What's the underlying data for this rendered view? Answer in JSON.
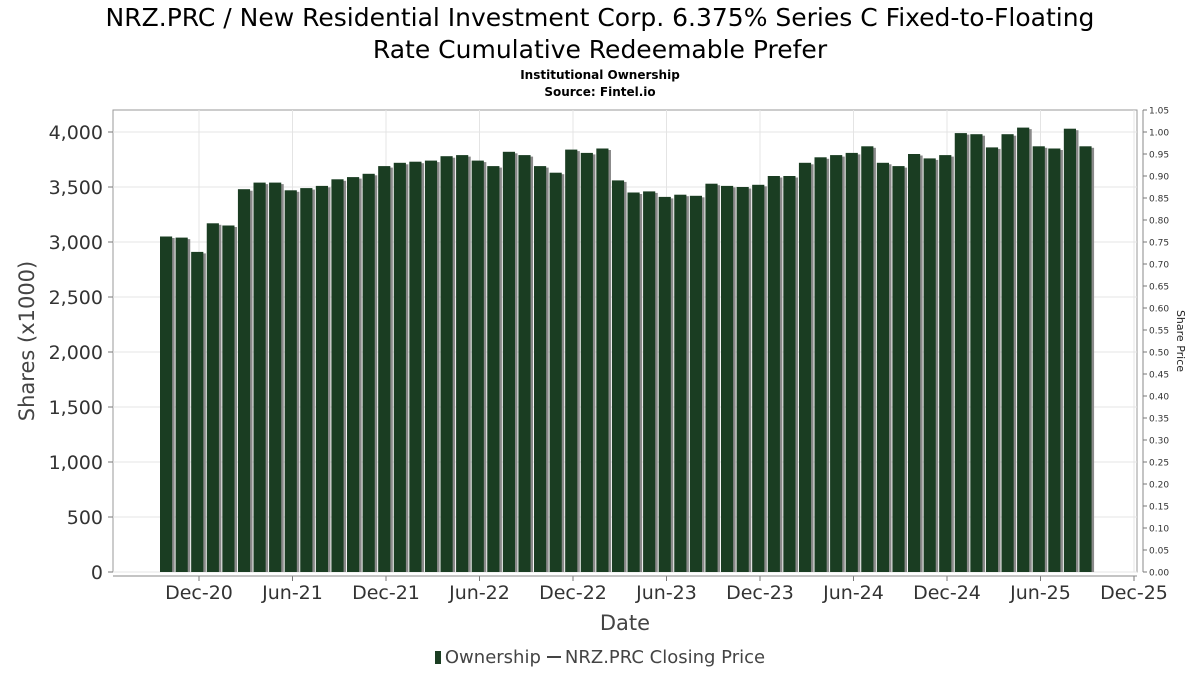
{
  "header": {
    "title_line1": "NRZ.PRC / New Residential Investment Corp. 6.375% Series C Fixed-to-Floating",
    "title_line2": "Rate Cumulative Redeemable Prefer",
    "subtitle": "Institutional Ownership",
    "source": "Source: Fintel.io"
  },
  "legend": {
    "ownership": "Ownership",
    "price": "NRZ.PRC Closing Price"
  },
  "chart_data": {
    "type": "bar",
    "title": "NRZ.PRC / New Residential Investment Corp. 6.375% Series C Fixed-to-Floating Rate Cumulative Redeemable Prefer",
    "subtitle": "Institutional Ownership",
    "xlabel": "Date",
    "ylabel": "Shares (x1000)",
    "y2label": "Share Price",
    "ylim": [
      0,
      4200
    ],
    "y2lim": [
      0,
      1.05
    ],
    "yticks": [
      0,
      500,
      1000,
      1500,
      2000,
      2500,
      3000,
      3500,
      4000
    ],
    "ytick_labels": [
      "0",
      "500",
      "1,000",
      "1,500",
      "2,000",
      "2,500",
      "3,000",
      "3,500",
      "4,000"
    ],
    "y2ticks": [
      0.0,
      0.05,
      0.1,
      0.15,
      0.2,
      0.25,
      0.3,
      0.35,
      0.4,
      0.45,
      0.5,
      0.55,
      0.6,
      0.65,
      0.7,
      0.75,
      0.8,
      0.85,
      0.9,
      0.95,
      1.0,
      1.05
    ],
    "y2tick_labels": [
      "0.00",
      "0.05",
      "0.10",
      "0.15",
      "0.20",
      "0.25",
      "0.30",
      "0.35",
      "0.40",
      "0.45",
      "0.50",
      "0.55",
      "0.60",
      "0.65",
      "0.70",
      "0.75",
      "0.80",
      "0.85",
      "0.90",
      "0.95",
      "1.00",
      "1.05"
    ],
    "xticks": [
      "Dec-20",
      "Jun-21",
      "Dec-21",
      "Jun-22",
      "Dec-22",
      "Jun-23",
      "Dec-23",
      "Jun-24",
      "Dec-24",
      "Jun-25",
      "Dec-25"
    ],
    "grid": true,
    "legend_position": "bottom",
    "colors": {
      "bar": "#1a3d22",
      "bar_shadow": "#8a8a8a",
      "price_line": "#444444",
      "grid": "#e4e4e4"
    },
    "series": [
      {
        "name": "Ownership",
        "values": [
          3050,
          3040,
          2910,
          3170,
          3150,
          3480,
          3540,
          3540,
          3470,
          3490,
          3510,
          3570,
          3590,
          3620,
          3690,
          3720,
          3730,
          3740,
          3780,
          3790,
          3740,
          3690,
          3820,
          3790,
          3690,
          3630,
          3840,
          3810,
          3850,
          3560,
          3450,
          3460,
          3410,
          3430,
          3420,
          3530,
          3510,
          3500,
          3520,
          3600,
          3600,
          3720,
          3770,
          3790,
          3810,
          3870,
          3720,
          3690,
          3800,
          3760,
          3790,
          3990,
          3980,
          3860,
          3980,
          4040,
          3870,
          3850,
          4030,
          3870
        ]
      }
    ]
  }
}
